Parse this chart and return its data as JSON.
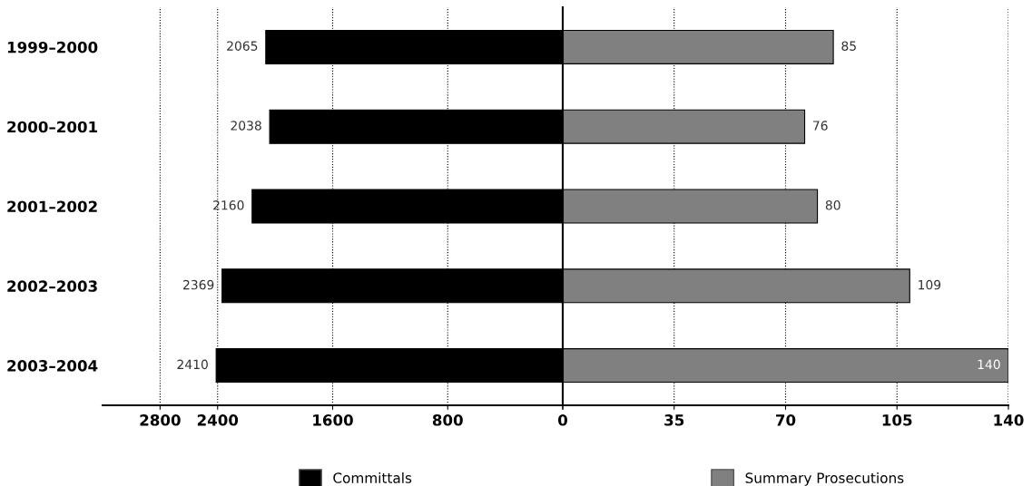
{
  "chart_data": [
    {
      "type": "bar",
      "orientation": "horizontal",
      "categories": [
        "1999–2000",
        "2000–2001",
        "2001–2002",
        "2002–2003",
        "2003–2004"
      ],
      "series": [
        {
          "name": "Committals",
          "color": "#000000",
          "values": [
            2065,
            2038,
            2160,
            2369,
            2410
          ]
        }
      ],
      "xlim": [
        3200,
        0
      ],
      "xticks": [
        2800,
        2400,
        1600,
        800,
        0
      ],
      "grid": "x",
      "data_labels": true,
      "legend": "bottom"
    },
    {
      "type": "bar",
      "orientation": "horizontal",
      "categories": [
        null,
        null,
        null,
        null,
        null
      ],
      "series": [
        {
          "name": "Summary Prosecutions",
          "color": "#808080",
          "values": [
            85,
            76,
            80,
            109,
            140
          ]
        }
      ],
      "xlim": [
        0,
        140
      ],
      "xticks": [
        {
          "value": 0,
          "label": null
        },
        35,
        70,
        105,
        140
      ],
      "grid": "x",
      "data_labels": true,
      "legend": "bottom",
      "tick_labels": "x"
    }
  ]
}
